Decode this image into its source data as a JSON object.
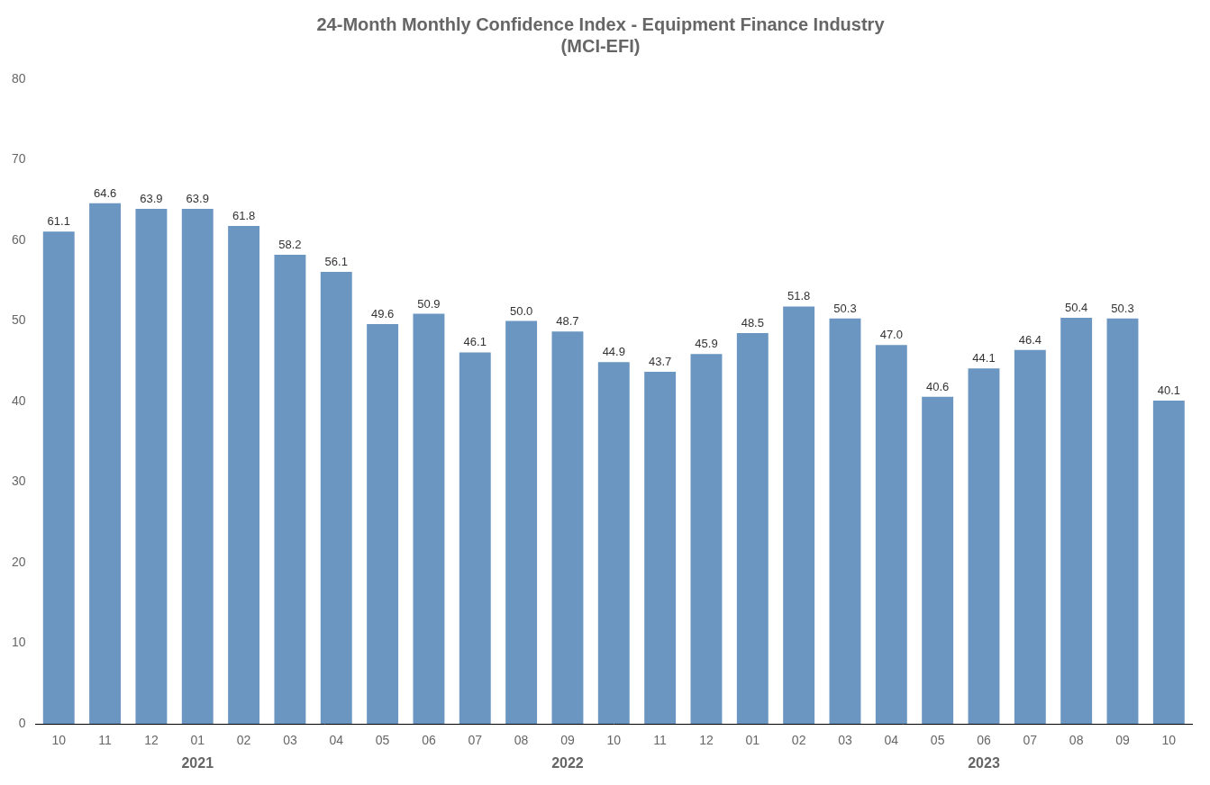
{
  "chart_data": {
    "type": "bar",
    "title": "24-Month Monthly Confidence Index - Equipment Finance Industry\n(MCI-EFI)",
    "categories": [
      "10",
      "11",
      "12",
      "01",
      "02",
      "03",
      "04",
      "05",
      "06",
      "07",
      "08",
      "09",
      "10",
      "11",
      "12",
      "01",
      "02",
      "03",
      "04",
      "05",
      "06",
      "07",
      "08",
      "09",
      "10"
    ],
    "group_labels": [
      null,
      null,
      null,
      "2021",
      null,
      null,
      null,
      null,
      null,
      null,
      null,
      "2022",
      null,
      null,
      null,
      null,
      null,
      null,
      null,
      null,
      "2023",
      null,
      null,
      null,
      null
    ],
    "values": [
      61.1,
      64.6,
      63.9,
      63.9,
      61.8,
      58.2,
      56.1,
      49.6,
      50.9,
      46.1,
      50.0,
      48.7,
      44.9,
      43.7,
      45.9,
      48.5,
      51.8,
      50.3,
      47.0,
      40.6,
      44.1,
      46.4,
      50.4,
      50.3,
      40.1
    ],
    "value_labels": [
      "61.1",
      "64.6",
      "63.9",
      "63.9",
      "61.8",
      "58.2",
      "56.1",
      "49.6",
      "50.9",
      "46.1",
      "50.0",
      "48.7",
      "44.9",
      "43.7",
      "45.9",
      "48.5",
      "51.8",
      "50.3",
      "47.0",
      "40.6",
      "44.1",
      "46.4",
      "50.4",
      "50.3",
      "40.1"
    ],
    "color": "#6b96c1",
    "data_labels": true,
    "ylim": [
      0,
      80
    ],
    "yticks": [
      0,
      10,
      20,
      30,
      40,
      50,
      60,
      70,
      80
    ],
    "grid": false
  }
}
